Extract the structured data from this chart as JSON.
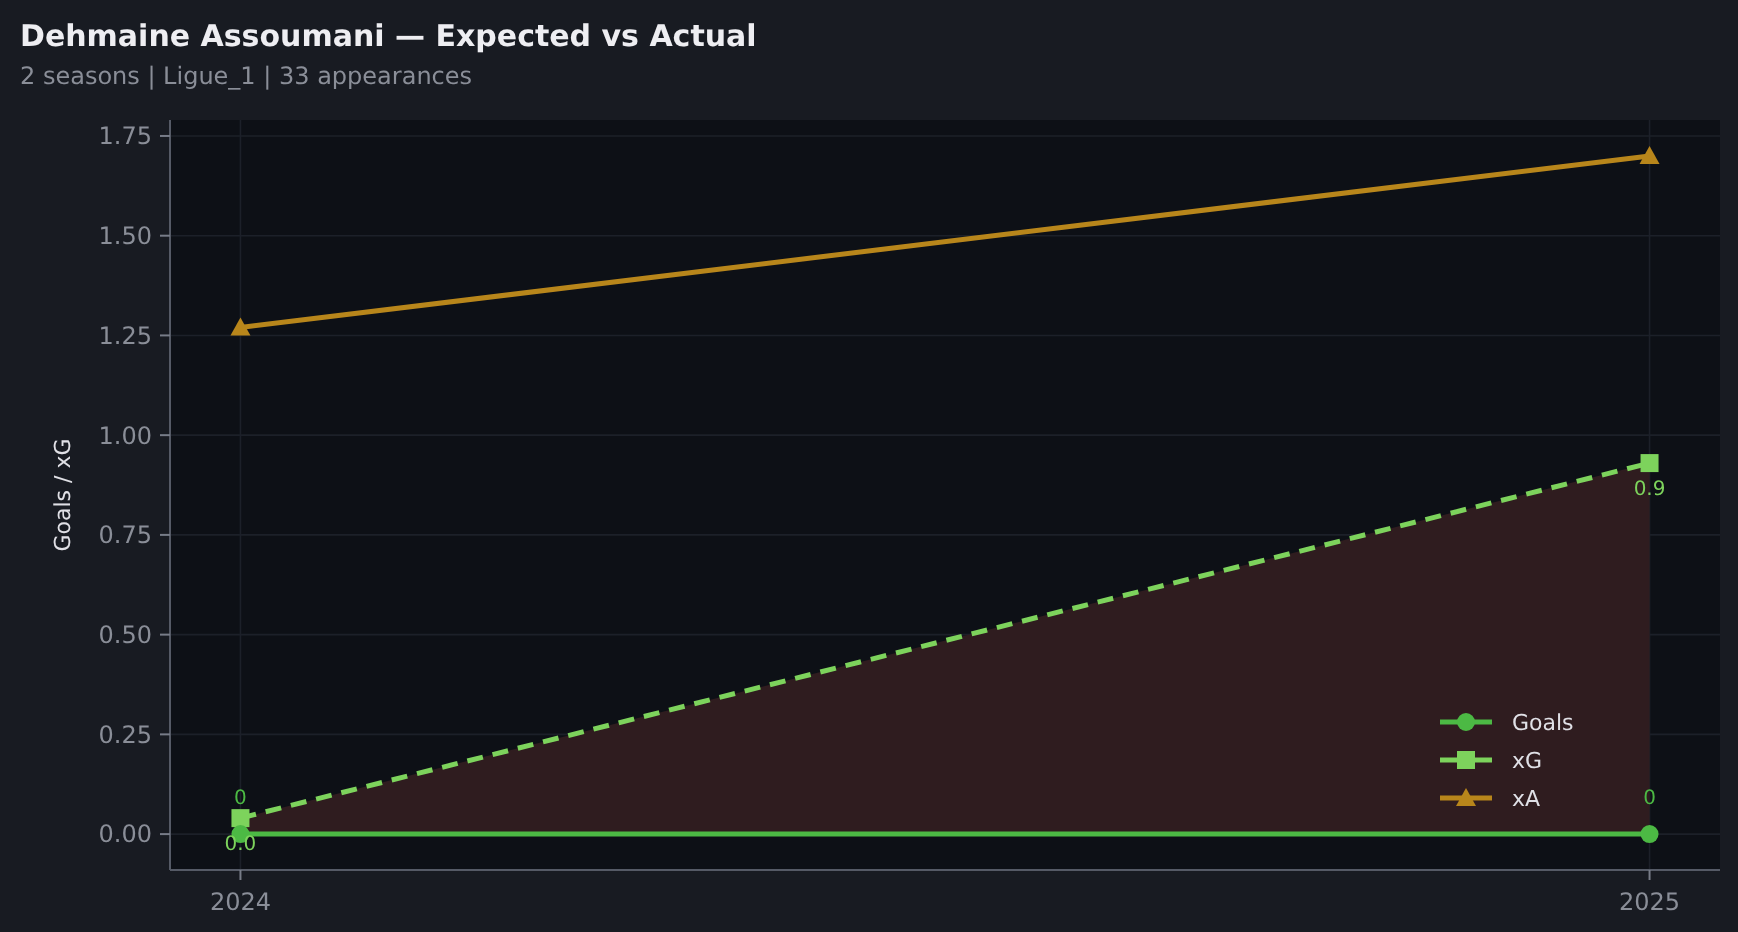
{
  "chart_data": {
    "type": "line",
    "title": "Dehmaine Assoumani — Expected vs Actual",
    "subtitle": "2 seasons | Ligue_1 | 33 appearances",
    "ylabel": "Goals / xG",
    "x": [
      2024,
      2025
    ],
    "xlim": [
      2023.95,
      2025.05
    ],
    "xticks": [
      2024,
      2025
    ],
    "ylim": [
      -0.09,
      1.79
    ],
    "yticks": [
      {
        "value": 0,
        "label": "0.00"
      },
      0.25,
      {
        "value": 0.5,
        "label": "0.50"
      },
      0.75,
      {
        "value": 1,
        "label": "1.00"
      },
      1.25,
      {
        "value": 1.5,
        "label": "1.50"
      },
      1.75
    ],
    "grid": true,
    "legend": "bottom right",
    "series": [
      {
        "name": "Goals",
        "color": "#4cb944",
        "values": [
          0,
          0
        ],
        "marker": "circle",
        "line_style": "solid",
        "value_labels": [
          "0",
          "0"
        ]
      },
      {
        "name": "xG",
        "color": "#7dd35c",
        "values": [
          0.04,
          0.93
        ],
        "marker": "square",
        "line_style": "dashed",
        "value_labels": [
          "0.0",
          "0.9"
        ],
        "lower": [
          0,
          0
        ],
        "upper": [
          0.04,
          0.93
        ]
      },
      {
        "name": "xA",
        "color": "#b8861b",
        "values": [
          1.27,
          1.7
        ],
        "marker": "triangle",
        "line_style": "solid"
      }
    ]
  }
}
